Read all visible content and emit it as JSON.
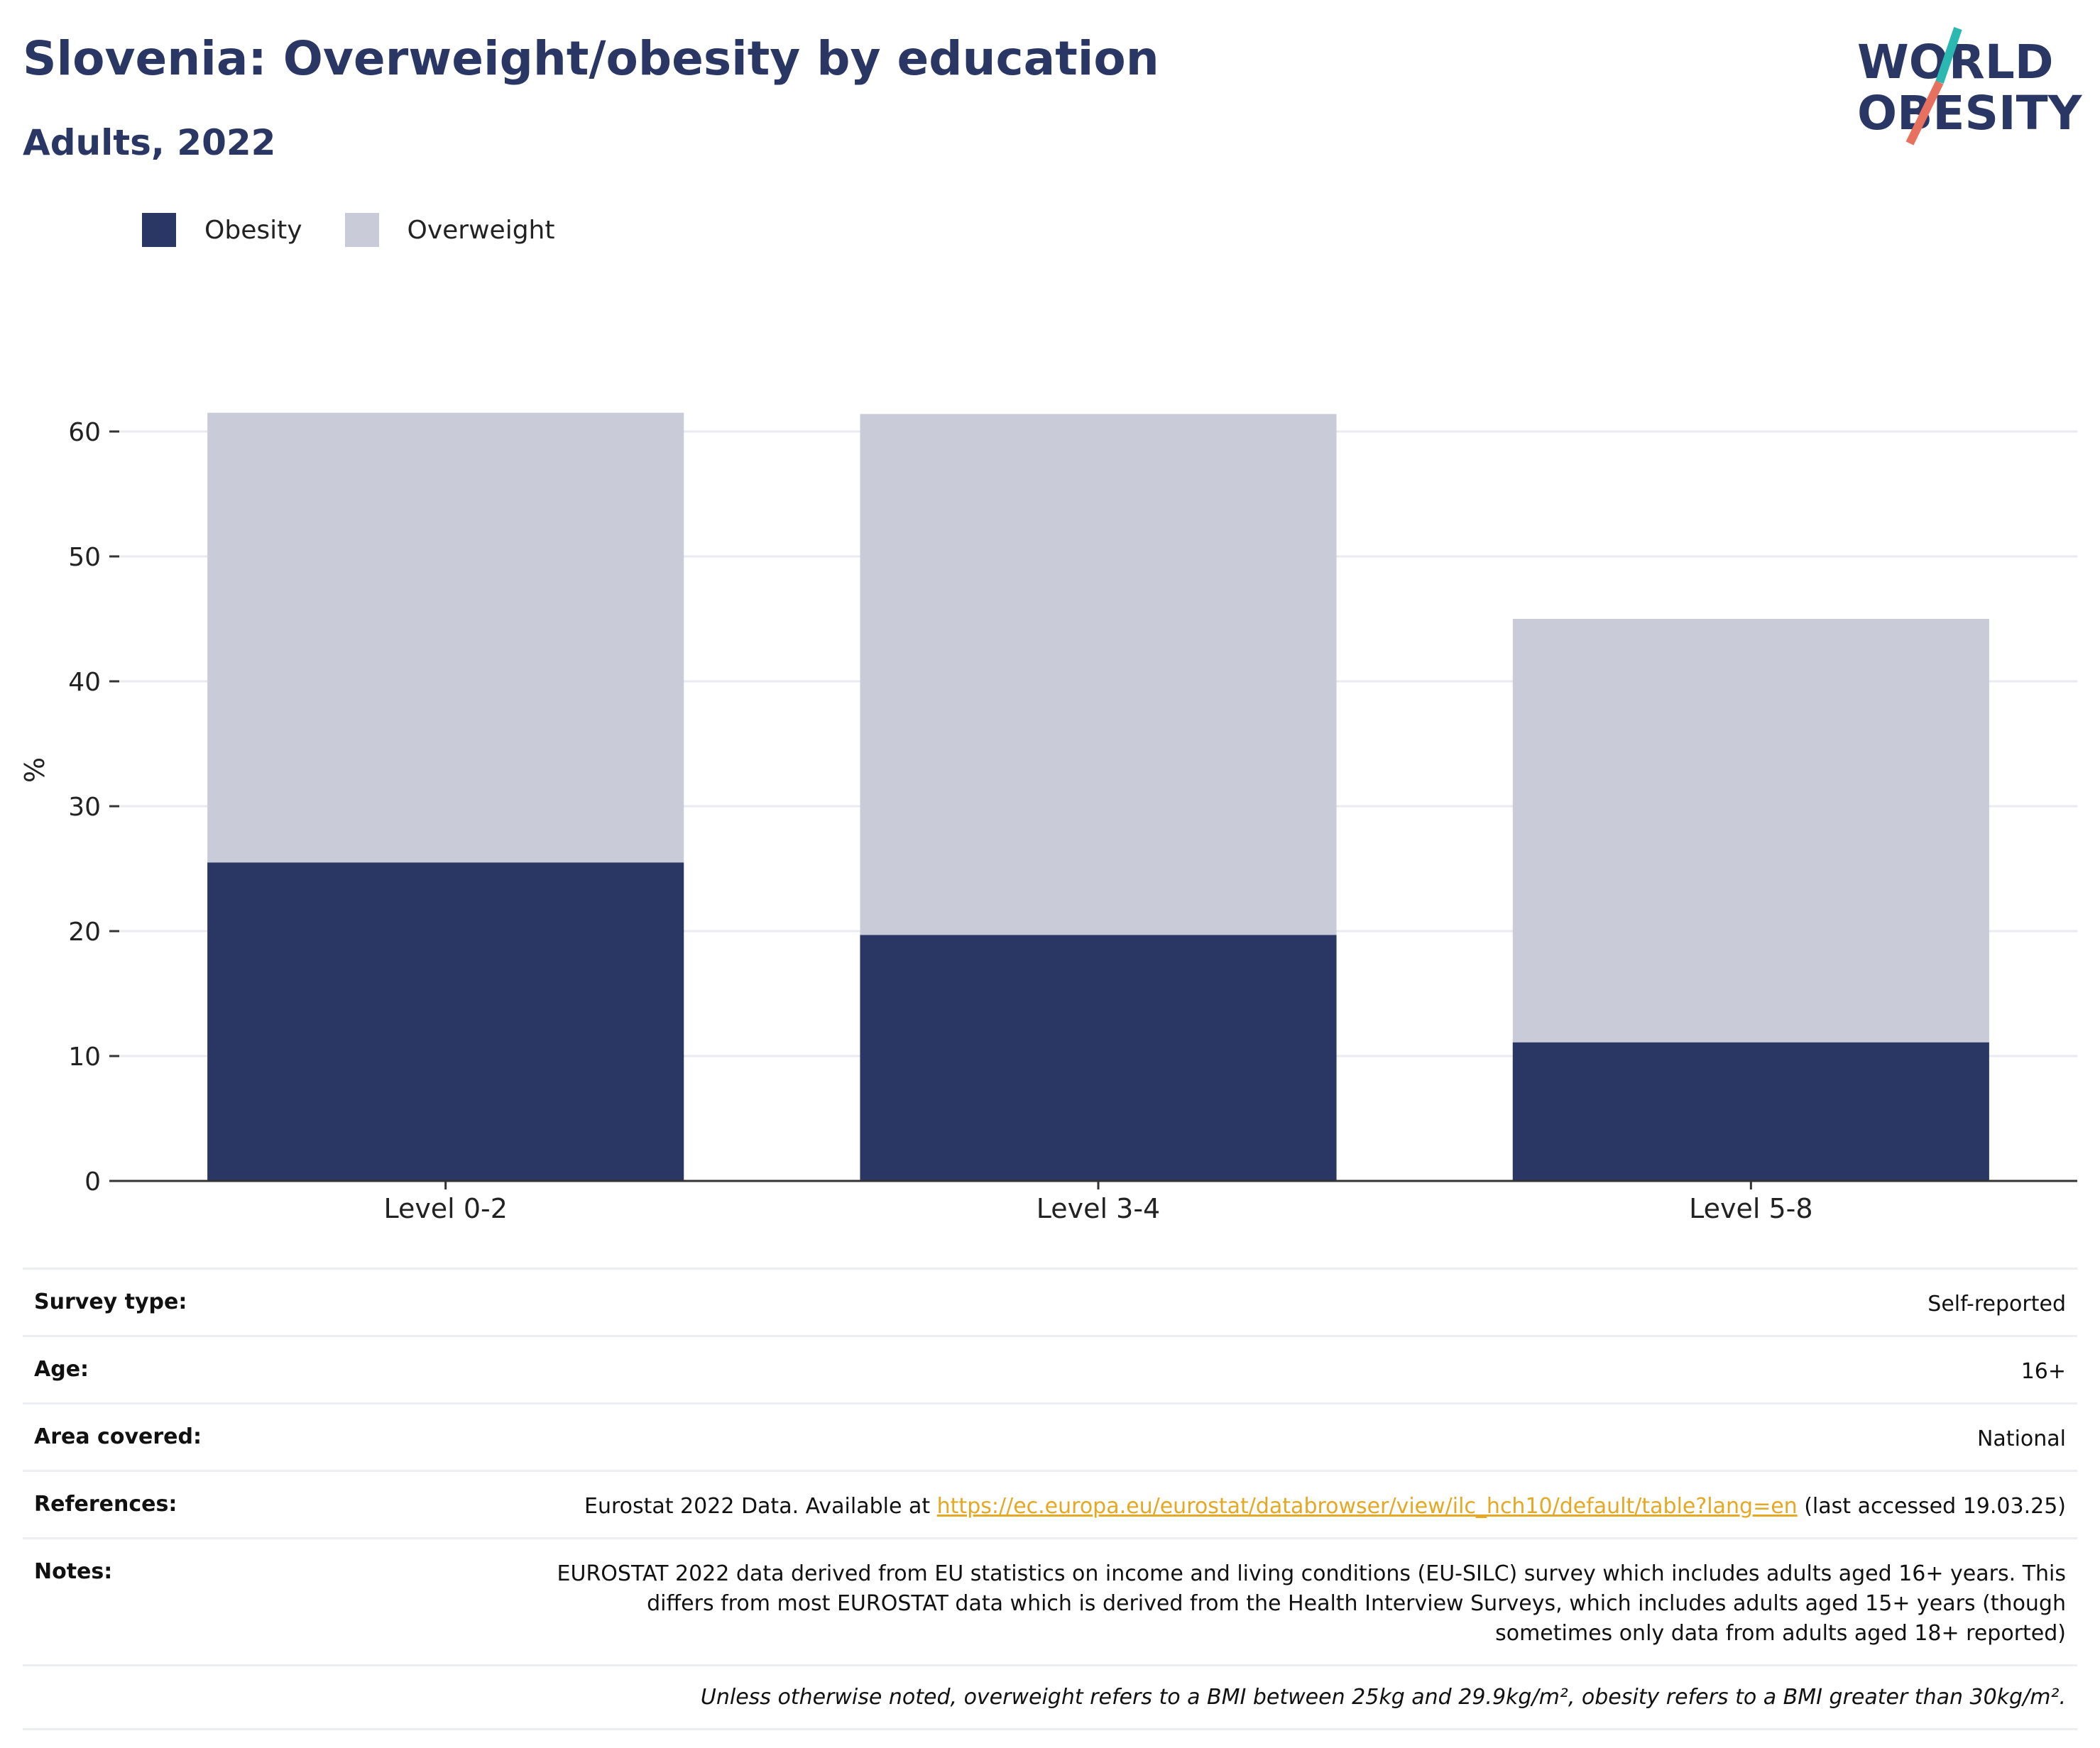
{
  "header": {
    "title": "Slovenia: Overweight/obesity by education",
    "subtitle": "Adults, 2022"
  },
  "logo": {
    "line1": "WORLD",
    "line2": "OBESITY",
    "colors": {
      "text": "#2a3764",
      "slash_top": "#2bb8b0",
      "slash_bottom": "#e8705f"
    }
  },
  "legend": {
    "items": [
      {
        "label": "Obesity",
        "color": "#2a3764"
      },
      {
        "label": "Overweight",
        "color": "#c9ccd8"
      }
    ]
  },
  "chart_data": {
    "type": "bar",
    "stacked": true,
    "categories": [
      "Level 0-2",
      "Level 3-4",
      "Level 5-8"
    ],
    "series": [
      {
        "name": "Obesity",
        "color": "#2a3764",
        "values": [
          25.5,
          19.7,
          11.1
        ]
      },
      {
        "name": "Overweight",
        "color": "#c9ccd8",
        "values": [
          36.0,
          41.7,
          33.9
        ]
      }
    ],
    "ylabel": "%",
    "ylim": [
      0,
      65
    ],
    "yticks": [
      0,
      10,
      20,
      30,
      40,
      50,
      60
    ],
    "grid": true,
    "legend_position": "top-left"
  },
  "meta": {
    "survey_type": {
      "label": "Survey type:",
      "value": "Self-reported"
    },
    "age": {
      "label": "Age:",
      "value": "16+"
    },
    "area": {
      "label": "Area covered:",
      "value": "National"
    },
    "references": {
      "label": "References:",
      "prefix": "Eurostat 2022 Data. Available at ",
      "link": "https://ec.europa.eu/eurostat/databrowser/view/ilc_hch10/default/table?lang=en",
      "suffix": " (last accessed 19.03.25)"
    },
    "notes": {
      "label": "Notes:",
      "value": "EUROSTAT 2022 data derived from EU statistics on income and living conditions (EU-SILC) survey which includes adults aged 16+ years. This differs from most EUROSTAT data which is derived from the Health Interview Surveys, which includes adults aged 15+ years (though sometimes only data from adults aged 18+ reported)"
    },
    "footnote": "Unless otherwise noted, overweight refers to a BMI between 25kg and 29.9kg/m², obesity refers to a BMI greater than 30kg/m²."
  }
}
